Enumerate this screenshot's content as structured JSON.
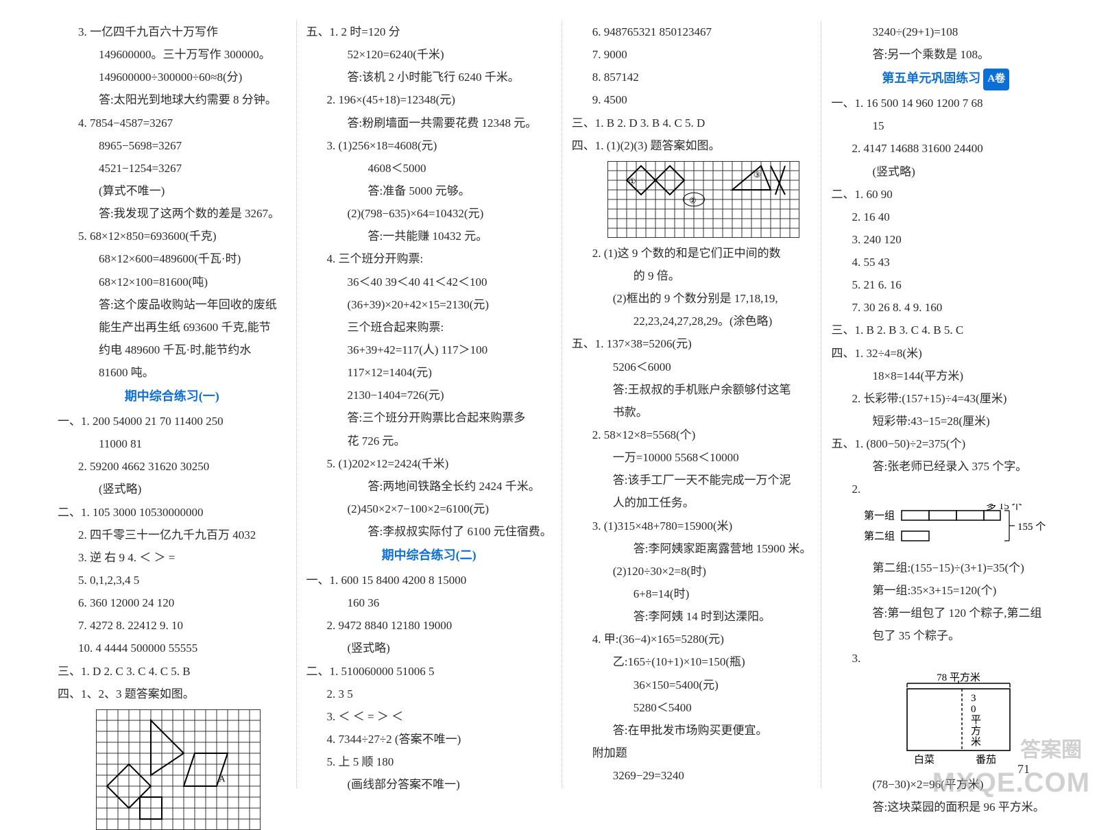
{
  "col1": {
    "l1": "3. 一亿四千九百六十万写作",
    "l2": "149600000。三十万写作 300000。",
    "l3": "149600000÷300000÷60≈8(分)",
    "l4": "答:太阳光到地球大约需要 8 分钟。",
    "l5": "4. 7854−4587=3267",
    "l6": "8965−5698=3267",
    "l7": "4521−1254=3267",
    "l8": "(算式不唯一)",
    "l9": "答:我发现了这两个数的差是 3267。",
    "l10": "5. 68×12×850=693600(千克)",
    "l11": "68×12×600=489600(千瓦·时)",
    "l12": "68×12×100=81600(吨)",
    "l13": "答:这个废品收购站一年回收的废纸",
    "l14": "能生产出再生纸 693600 千克,能节",
    "l15": "约电 489600 千瓦·时,能节约水",
    "l16": "81600 吨。",
    "h1": "期中综合练习(一)",
    "l17": "一、1. 200  54000  21  70  11400  250",
    "l18": "11000  81",
    "l19": "2. 59200  4662  31620  30250",
    "l20": "(竖式略)",
    "l21": "二、1. 105  3000  10530000000",
    "l22": "2. 四千零三十一亿九千九百万  4032",
    "l23": "3. 逆  右  9  4. ＜  ＞  =",
    "l24": "5. 0,1,2,3,4  5",
    "l25": "6. 360  12000  24  120",
    "l26": "7. 4272  8. 22412  9. 10",
    "l27": "10. 4  4444    500000  55555",
    "l28": "三、1. D  2. C  3. C  4. C  5. B",
    "l29": "四、1、2、3 题答案如图。",
    "grid1": {
      "cols": 15,
      "rows": 11,
      "cell": 16,
      "stroke": "#333333",
      "bg": "#ffffff",
      "shapes": [
        {
          "type": "poly",
          "pts": [
            [
              3,
              0
            ],
            [
              7,
              4
            ],
            [
              3,
              8
            ],
            [
              -1,
              4
            ]
          ],
          "off": [
            2.5,
            2
          ]
        },
        {
          "type": "poly",
          "pts": [
            [
              7,
              2
            ],
            [
              10,
              5
            ],
            [
              8,
              7
            ],
            [
              5,
              4
            ]
          ],
          "off": [
            4,
            1
          ]
        },
        {
          "type": "poly",
          "pts": [
            [
              0,
              6
            ],
            [
              3,
              6
            ],
            [
              5,
              9
            ],
            [
              2,
              9
            ]
          ],
          "off": [
            0,
            0
          ]
        },
        {
          "type": "poly",
          "pts": [
            [
              10,
              4
            ],
            [
              13,
              4
            ],
            [
              13,
              8
            ],
            [
              10,
              8
            ]
          ],
          "off": [
            0,
            0
          ]
        }
      ]
    }
  },
  "col2": {
    "l1": "五、1. 2 时=120 分",
    "l2": "52×120=6240(千米)",
    "l3": "答:该机 2 小时能飞行 6240 千米。",
    "l4": "2. 196×(45+18)=12348(元)",
    "l5": "答:粉刷墙面一共需要花费 12348 元。",
    "l6": "3. (1)256×18=4608(元)",
    "l7": "4608＜5000",
    "l8": "答:准备 5000 元够。",
    "l9": "(2)(798−635)×64=10432(元)",
    "l10": "答:一共能赚 10432 元。",
    "l11": "4. 三个班分开购票:",
    "l12": "36＜40  39＜40  41＜42＜100",
    "l13": "(36+39)×20+42×15=2130(元)",
    "l14": "三个班合起来购票:",
    "l15": "36+39+42=117(人)  117＞100",
    "l16": "117×12=1404(元)",
    "l17": "2130−1404=726(元)",
    "l18": "答:三个班分开购票比合起来购票多",
    "l19": "花 726 元。",
    "l20": "5. (1)202×12=2424(千米)",
    "l21": "答:两地间铁路全长约 2424 千米。",
    "l22": "(2)450×2×7−100×2=6100(元)",
    "l23": "答:李叔叔实际付了 6100 元住宿费。",
    "h1": "期中综合练习(二)",
    "l24": "一、1. 600  15  8400  4200  8  15000",
    "l25": "160  36",
    "l26": "2. 9472  8840  12180  19000",
    "l27": "(竖式略)",
    "l28": "二、1. 510060000  51006  5",
    "l29": "2. 3  5",
    "l30": "3. ＜  ＜  =  ＞  ＜",
    "l31": "4. 7344÷27÷2 (答案不唯一)",
    "l32": "5. 上  5  顺  180",
    "l33": "(画线部分答案不唯一)"
  },
  "col3": {
    "l1": "6. 948765321  850123467",
    "l2": "7. 9000",
    "l3": "8. 857142",
    "l4": "9. 4500",
    "l5": "三、1. B  2. D  3. B  4. C  5. D",
    "l6": "四、1. (1)(2)(3) 题答案如图。",
    "grid2": {
      "cols": 20,
      "rows": 8,
      "cell": 14,
      "stroke": "#333333"
    },
    "l7": "2. (1)这 9 个数的和是它们正中间的数",
    "l8": "的 9 倍。",
    "l9": "(2)框出的 9 个数分别是 17,18,19,",
    "l10": "22,23,24,27,28,29。(涂色略)",
    "l11": "五、1. 137×38=5206(元)",
    "l12": "5206＜6000",
    "l13": "答:王叔叔的手机账户余额够付这笔",
    "l14": "书款。",
    "l15": "2. 58×12×8=5568(个)",
    "l16": "一万=10000  5568＜10000",
    "l17": "答:该手工厂一天不能完成一万个泥",
    "l18": "人的加工任务。",
    "l19": "3. (1)315×48+780=15900(米)",
    "l20": "答:李阿姨家距离露营地 15900 米。",
    "l21": "(2)120÷30×2=8(时)",
    "l22": "6+8=14(时)",
    "l23": "答:李阿姨 14 时到达溧阳。",
    "l24": "4. 甲:(36−4)×165=5280(元)",
    "l25": "乙:165÷(10+1)×10=150(瓶)",
    "l26": "36×150=5400(元)",
    "l27": "5280＜5400",
    "l28": "答:在甲批发市场购买更便宜。",
    "l29": "附加题",
    "l30": "3269−29=3240"
  },
  "col4": {
    "l1": "3240÷(29+1)=108",
    "l2": "答:另一个乘数是 108。",
    "h1": "第五单元巩固练习",
    "a1": "A卷",
    "l3": "一、1. 16  500  14  960  1200  7  68",
    "l4": "15",
    "l5": "2. 4147  14688  31600  24400",
    "l6": "(竖式略)",
    "l7": "二、1. 60  90",
    "l8": "2. 16  40",
    "l9": "3. 240  120",
    "l10": "4. 55  43",
    "l11": "5. 21  6. 16",
    "l12": "7. 30  26  8. 4  9. 160",
    "l13": "三、1. B  2. B  3. C  4. B  5. C",
    "l14": "四、1. 32÷4=8(米)",
    "l15": "18×8=144(平方米)",
    "l16": "2. 长彩带:(157+15)÷4=43(厘米)",
    "l17": "短彩带:43−15=28(厘米)",
    "l18": "五、1. (800−50)÷2=375(个)",
    "l19": "答:张老师已经录入 375 个字。",
    "l20": "2.",
    "bar": {
      "label1": "第一组",
      "label2": "第二组",
      "note1": "多 15 个",
      "note2": "155 个"
    },
    "l21": "第二组:(155−15)÷(3+1)=35(个)",
    "l22": "第一组:35×3+15=120(个)",
    "l23": "答:第一组包了 120 个粽子,第二组",
    "l24": "包了 35 个粽子。",
    "l25": "3.",
    "veg": {
      "top": "78 平方米",
      "right": "30平方米",
      "left": "白菜",
      "rightlabel": "番茄"
    },
    "l26": "(78−30)×2=96(平方米)",
    "l27": "答:这块菜园的面积是 96 平方米。"
  },
  "page_number": "71",
  "wm_cn": "答案圈",
  "wm_en": "MXQE.COM"
}
